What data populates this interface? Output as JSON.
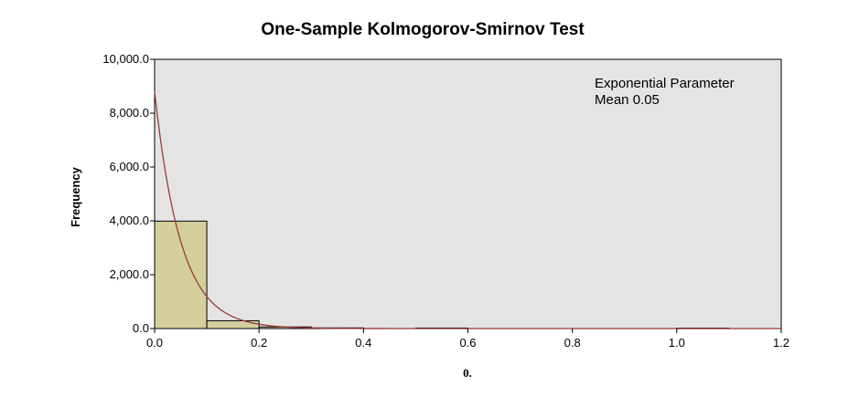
{
  "chart_data": {
    "type": "bar",
    "title": "One-Sample Kolmogorov-Smirnov Test",
    "xlabel": "0.",
    "ylabel": "Frequency",
    "xlim": [
      0.0,
      1.2
    ],
    "ylim": [
      0,
      10000
    ],
    "x_ticks": [
      "0.0",
      "0.2",
      "0.4",
      "0.6",
      "0.8",
      "1.0",
      "1.2"
    ],
    "x_tick_values": [
      0.0,
      0.2,
      0.4,
      0.6,
      0.8,
      1.0,
      1.2
    ],
    "y_ticks": [
      "0.0",
      "2,000.0",
      "4,000.0",
      "6,000.0",
      "8,000.0",
      "10,000.0"
    ],
    "y_tick_values": [
      0,
      2000,
      4000,
      6000,
      8000,
      10000
    ],
    "bins": [
      {
        "start": 0.0,
        "end": 0.1,
        "count": 3990
      },
      {
        "start": 0.1,
        "end": 0.2,
        "count": 290
      },
      {
        "start": 0.2,
        "end": 0.3,
        "count": 60
      },
      {
        "start": 0.3,
        "end": 0.4,
        "count": 25
      },
      {
        "start": 0.5,
        "end": 0.6,
        "count": 20
      },
      {
        "start": 1.0,
        "end": 1.1,
        "count": 15
      }
    ],
    "fit_curve": {
      "distribution": "exponential",
      "mean": 0.05,
      "peak_y": 8800,
      "color": "#9b3a3a"
    },
    "annotation": [
      "Exponential Parameter",
      "Mean 0.05"
    ],
    "grid": false,
    "colors": {
      "plot_background": "#e4e4e4",
      "bar_fill": "#d4cf9c",
      "bar_stroke": "#000000"
    }
  }
}
